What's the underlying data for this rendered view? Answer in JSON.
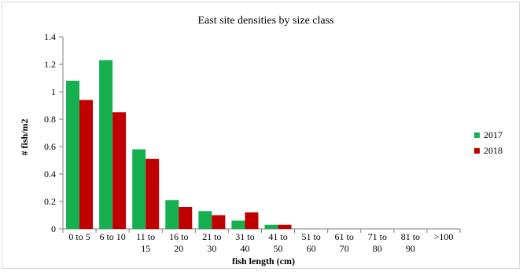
{
  "chart_data": {
    "type": "bar",
    "title": "East site densities by size class",
    "xlabel": "fish length (cm)",
    "ylabel": "# fish/m2",
    "ylim": [
      0,
      1.4
    ],
    "yticks": [
      "0",
      "0.2",
      "0.4",
      "0.6",
      "0.8",
      "1",
      "1.2",
      "1.4"
    ],
    "categories": [
      [
        "0 to 5"
      ],
      [
        "6 to 10"
      ],
      [
        "11 to",
        "15"
      ],
      [
        "16 to",
        "20"
      ],
      [
        "21 to",
        "30"
      ],
      [
        "31 to",
        "40"
      ],
      [
        "41 to",
        "50"
      ],
      [
        "51 to",
        "60"
      ],
      [
        "61 to",
        "70"
      ],
      [
        "71 to",
        "80"
      ],
      [
        "81 to",
        "90"
      ],
      [
        ">100"
      ]
    ],
    "series": [
      {
        "name": "2017",
        "color": "#17b050",
        "values": [
          1.08,
          1.23,
          0.58,
          0.21,
          0.13,
          0.06,
          0.03,
          0,
          0,
          0,
          0,
          0
        ]
      },
      {
        "name": "2018",
        "color": "#c00000",
        "values": [
          0.94,
          0.85,
          0.51,
          0.16,
          0.1,
          0.12,
          0.03,
          0,
          0,
          0,
          0,
          0
        ]
      }
    ],
    "grid": false,
    "legend": "right"
  }
}
